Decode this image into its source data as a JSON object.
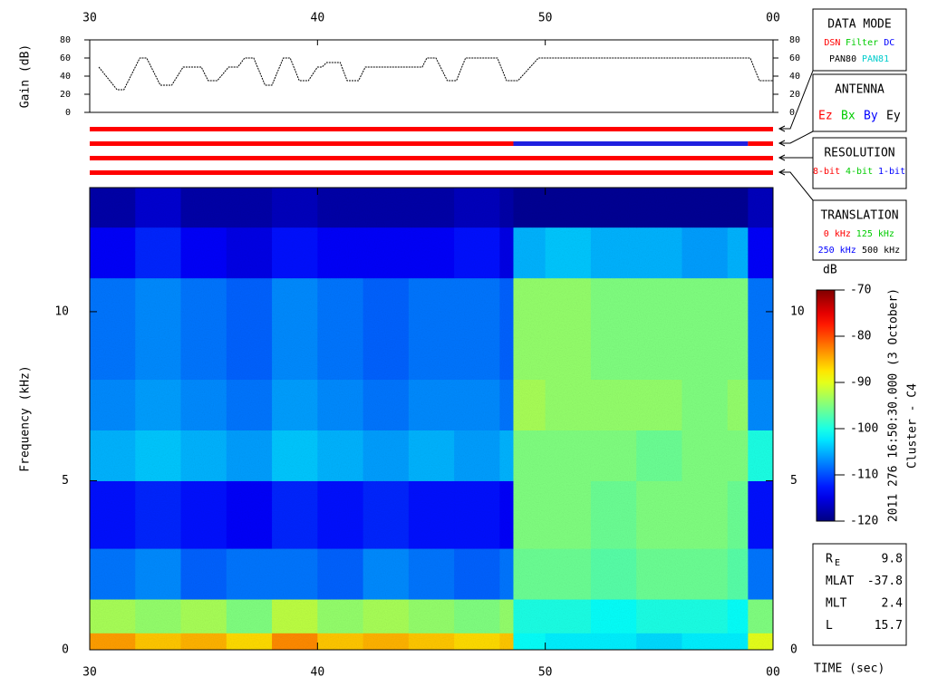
{
  "chart_data": [
    {
      "type": "line",
      "ylabel": "Gain (dB)",
      "color": "#000000",
      "xlim": [
        30,
        60
      ],
      "xticks": [
        30,
        40,
        50,
        {
          "value": 60,
          "label": "00"
        }
      ],
      "ylim": [
        0,
        80
      ],
      "yticks": [
        0,
        20,
        40,
        60,
        80
      ],
      "x": [
        30.4,
        31.2,
        31.5,
        32.2,
        32.5,
        33.1,
        33.6,
        34.1,
        34.9,
        35.2,
        35.6,
        36.1,
        36.5,
        36.8,
        37.2,
        37.7,
        38.0,
        38.5,
        38.8,
        39.2,
        39.6,
        40.0,
        40.2,
        40.4,
        41.0,
        41.3,
        41.8,
        42.1,
        44.6,
        44.8,
        45.2,
        45.7,
        46.1,
        46.5,
        47.9,
        48.3,
        48.8,
        49.7,
        59.0,
        59.4,
        60.0
      ],
      "values": [
        50,
        25,
        25,
        60,
        60,
        30,
        30,
        50,
        50,
        35,
        35,
        50,
        50,
        60,
        60,
        30,
        30,
        60,
        60,
        35,
        35,
        50,
        50,
        55,
        55,
        35,
        35,
        50,
        50,
        60,
        60,
        35,
        35,
        60,
        60,
        35,
        35,
        60,
        60,
        35,
        35
      ]
    },
    {
      "type": "timeline",
      "xlim": [
        30,
        60
      ],
      "rows": [
        {
          "segments": [
            {
              "start": 30,
              "end": 60,
              "color": "#ff0000"
            }
          ]
        },
        {
          "segments": [
            {
              "start": 30,
              "end": 48.6,
              "color": "#ff0000"
            },
            {
              "start": 48.6,
              "end": 58.9,
              "color": "#1f1fdf"
            },
            {
              "start": 58.9,
              "end": 60,
              "color": "#ff0000"
            }
          ]
        },
        {
          "segments": [
            {
              "start": 30,
              "end": 60,
              "color": "#ff0000"
            }
          ]
        },
        {
          "segments": [
            {
              "start": 30,
              "end": 60,
              "color": "#ff0000"
            }
          ]
        }
      ]
    },
    {
      "type": "heatmap",
      "xlabel": "TIME (sec)",
      "ylabel": "Frequency (kHz)",
      "xlim": [
        30,
        60
      ],
      "xticks": [
        30,
        40,
        50,
        {
          "value": 60,
          "label": "00"
        }
      ],
      "ylim": [
        0,
        13.67
      ],
      "yticks": [
        0,
        5,
        10
      ],
      "x_edges": [
        30,
        32,
        34,
        36,
        38,
        40,
        42,
        44,
        46,
        48,
        48.6,
        50,
        52,
        54,
        56,
        58,
        58.9,
        60
      ],
      "y_edges": [
        0,
        0.5,
        1.5,
        3,
        5,
        6.5,
        8,
        11,
        12.5,
        13.67
      ],
      "z": [
        [
          -84,
          -86,
          -85,
          -87,
          -83,
          -86,
          -85,
          -86,
          -87,
          -86,
          -101,
          -102,
          -102,
          -103,
          -102,
          -102,
          -90
        ],
        [
          -93,
          -94,
          -93,
          -95,
          -92,
          -94,
          -93,
          -94,
          -95,
          -94,
          -100,
          -100,
          -101,
          -100,
          -100,
          -101,
          -95
        ],
        [
          -108,
          -107,
          -109,
          -108,
          -108,
          -109,
          -107,
          -108,
          -109,
          -108,
          -96,
          -96,
          -97,
          -96,
          -96,
          -97,
          -108
        ],
        [
          -113,
          -112,
          -113,
          -114,
          -112,
          -113,
          -112,
          -113,
          -113,
          -114,
          -95,
          -95,
          -96,
          -95,
          -95,
          -96,
          -113
        ],
        [
          -105,
          -104,
          -105,
          -106,
          -104,
          -105,
          -106,
          -105,
          -106,
          -105,
          -95,
          -95,
          -95,
          -96,
          -95,
          -95,
          -100
        ],
        [
          -107,
          -106,
          -107,
          -108,
          -106,
          -107,
          -108,
          -107,
          -107,
          -108,
          -93,
          -94,
          -94,
          -94,
          -95,
          -94,
          -107
        ],
        [
          -108,
          -107,
          -108,
          -109,
          -107,
          -108,
          -109,
          -108,
          -108,
          -109,
          -94,
          -94,
          -95,
          -95,
          -95,
          -95,
          -108
        ],
        [
          -114,
          -112,
          -114,
          -115,
          -113,
          -114,
          -114,
          -114,
          -113,
          -115,
          -105,
          -104,
          -105,
          -105,
          -106,
          -105,
          -114
        ],
        [
          -118,
          -116,
          -118,
          -118,
          -117,
          -118,
          -118,
          -118,
          -117,
          -118,
          -119,
          -119,
          -119,
          -119,
          -119,
          -119,
          -117
        ]
      ],
      "colorbar": {
        "label": "dB",
        "clim": [
          -120,
          -70
        ],
        "ticks": [
          -70,
          -80,
          -90,
          -100,
          -110,
          -120
        ]
      },
      "annotation": "2011 276 16:50:30.000 (3 October)",
      "subtitle": "Cluster - C4"
    }
  ],
  "panels": [
    {
      "title": "DATA MODE",
      "rows": [
        [
          {
            "text": "DSN",
            "color": "#ff0000"
          },
          {
            "text": "Filter",
            "color": "#00cc00"
          },
          {
            "text": "DC",
            "color": "#0000ff"
          }
        ],
        [
          {
            "text": "PAN80",
            "color": "#000000"
          },
          {
            "text": "PAN81",
            "color": "#00cccc"
          }
        ]
      ]
    },
    {
      "title": "ANTENNA",
      "rows": [
        [
          {
            "text": "Ez",
            "color": "#ff0000"
          },
          {
            "text": "Bx",
            "color": "#00cc00"
          },
          {
            "text": "By",
            "color": "#0000ff"
          },
          {
            "text": "Ey",
            "color": "#000000"
          }
        ]
      ]
    },
    {
      "title": "RESOLUTION",
      "rows": [
        [
          {
            "text": "8-bit",
            "color": "#ff0000"
          },
          {
            "text": "4-bit",
            "color": "#00cc00"
          },
          {
            "text": "1-bit",
            "color": "#0000ff"
          }
        ]
      ]
    },
    {
      "title": "TRANSLATION",
      "rows": [
        [
          {
            "text": "0 kHz",
            "color": "#ff0000"
          },
          {
            "text": "125 kHz",
            "color": "#00cc00"
          }
        ],
        [
          {
            "text": "250 kHz",
            "color": "#0000ff"
          },
          {
            "text": "500 kHz",
            "color": "#000000"
          }
        ]
      ]
    }
  ],
  "info": [
    {
      "label": "R",
      "sub": "E",
      "value": 9.8
    },
    {
      "label": "MLAT",
      "value": -37.8
    },
    {
      "label": "MLT",
      "value": 2.4
    },
    {
      "label": "L",
      "value": 15.7
    }
  ]
}
